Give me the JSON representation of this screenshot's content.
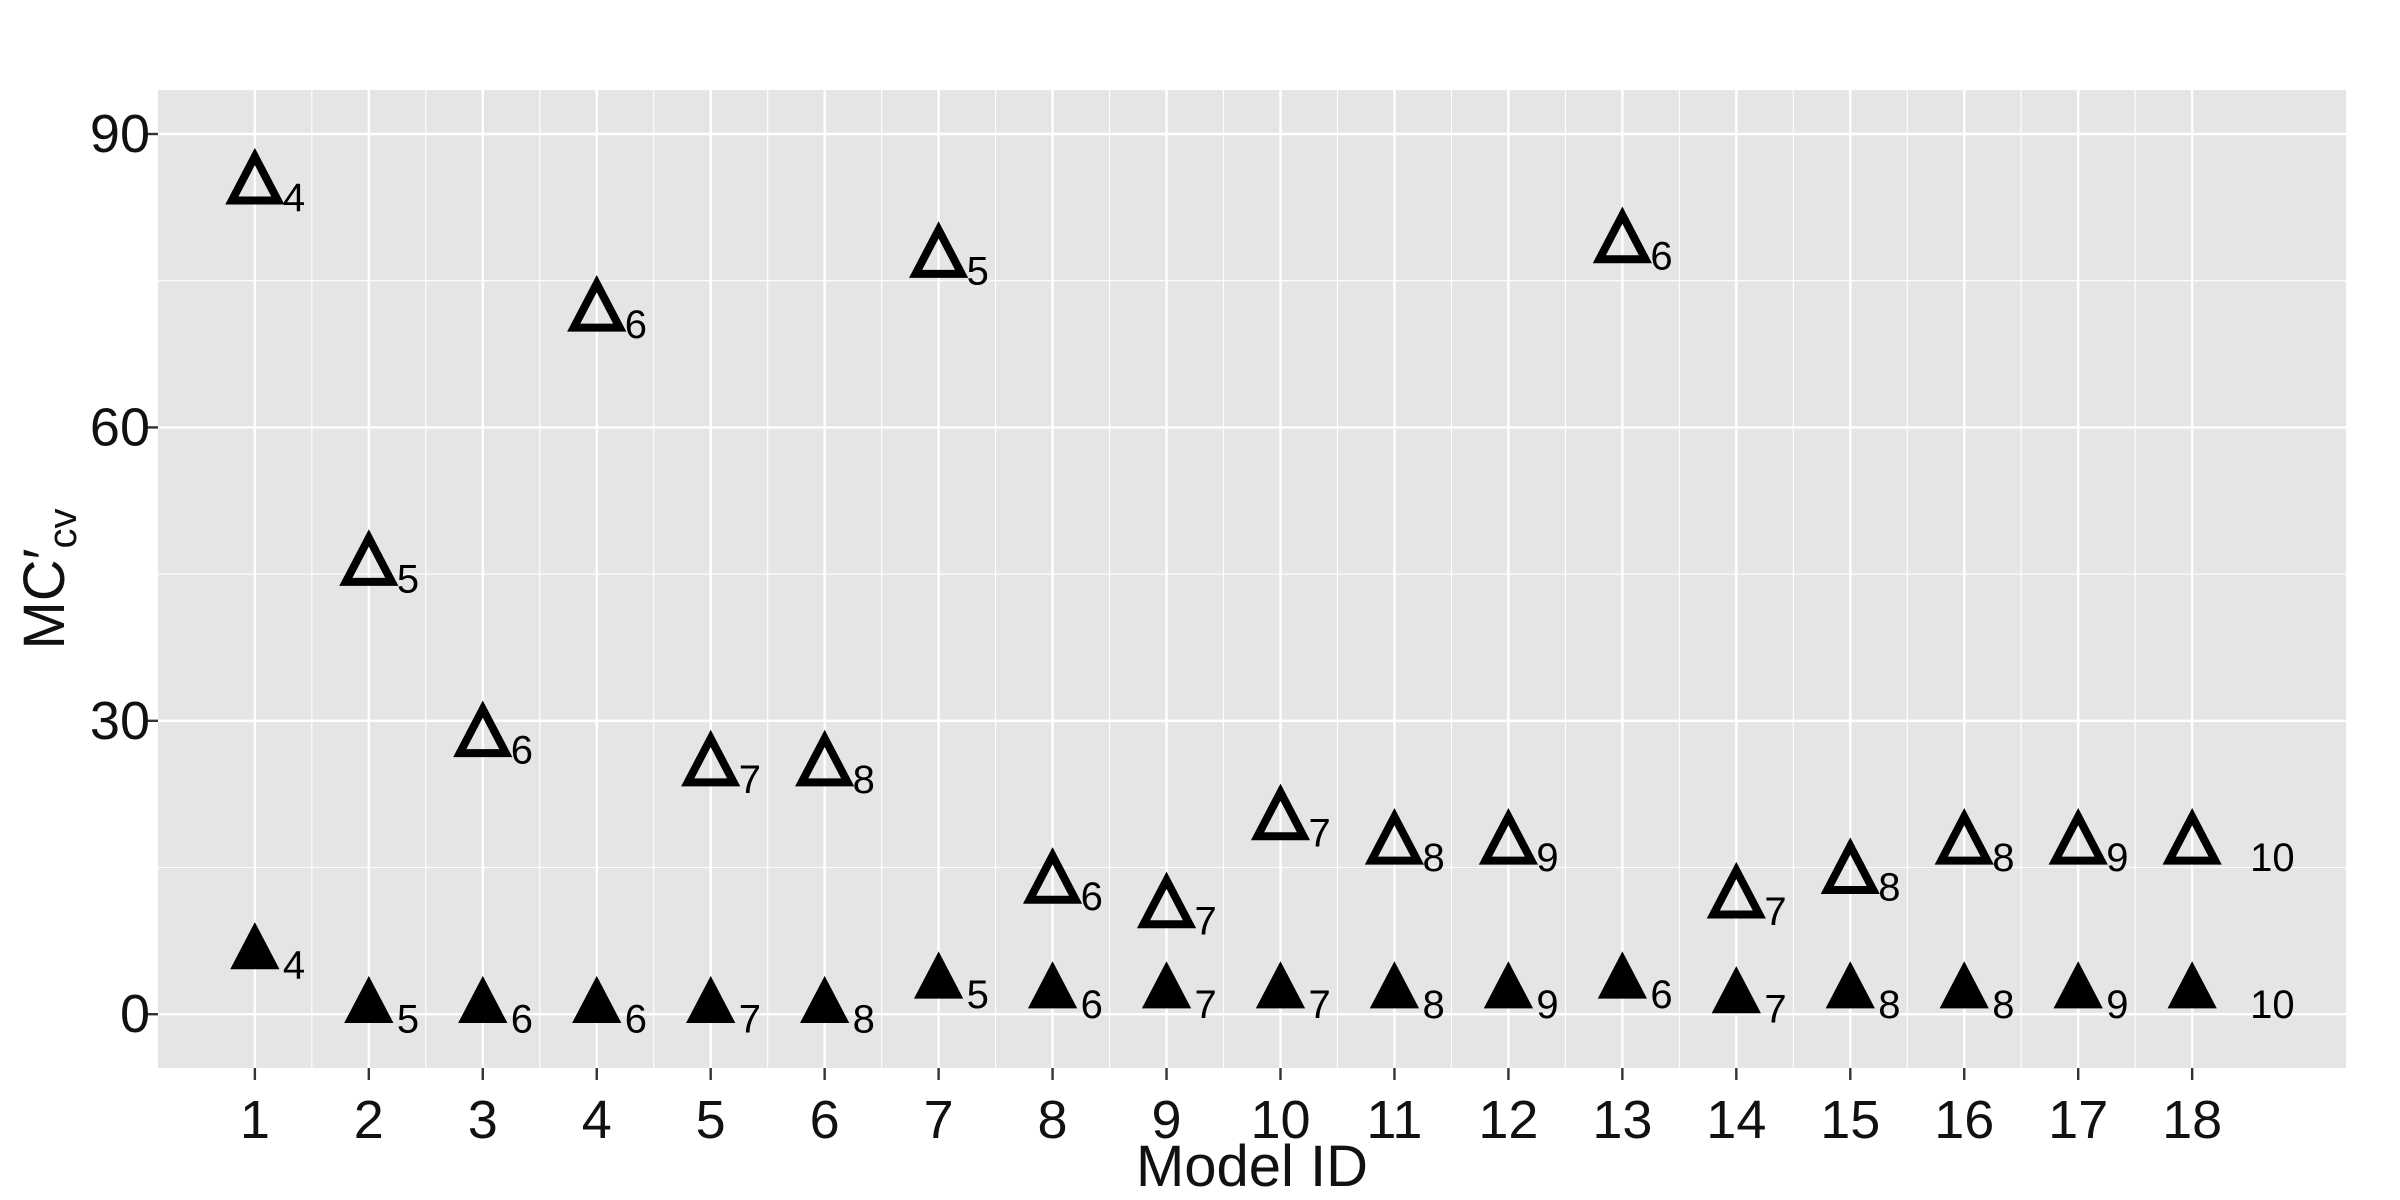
{
  "chart_data": {
    "type": "scatter",
    "title": "",
    "xlabel": "Model ID",
    "ylabel_main": "MC′",
    "ylabel_sub": "cv",
    "xlim": [
      0.15,
      19.35
    ],
    "ylim": [
      -5.5,
      94.5
    ],
    "x_ticks": [
      1,
      2,
      3,
      4,
      5,
      6,
      7,
      8,
      9,
      10,
      11,
      12,
      13,
      14,
      15,
      16,
      17,
      18
    ],
    "y_ticks": [
      0,
      30,
      60,
      90
    ],
    "grid": true,
    "legend": "none",
    "colors": {
      "panel": "#e5e5e5",
      "grid": "#ffffff",
      "marker": "#000000"
    },
    "series": [
      {
        "marker": "open-triangle",
        "points": [
          {
            "x": 1,
            "y": 85,
            "label": "4"
          },
          {
            "x": 2,
            "y": 46,
            "label": "5"
          },
          {
            "x": 3,
            "y": 28.5,
            "label": "6"
          },
          {
            "x": 4,
            "y": 72,
            "label": "6"
          },
          {
            "x": 5,
            "y": 25.5,
            "label": "7"
          },
          {
            "x": 6,
            "y": 25.5,
            "label": "8"
          },
          {
            "x": 7,
            "y": 77.5,
            "label": "5"
          },
          {
            "x": 8,
            "y": 13.5,
            "label": "6"
          },
          {
            "x": 9,
            "y": 11,
            "label": "7"
          },
          {
            "x": 10,
            "y": 20,
            "label": "7"
          },
          {
            "x": 11,
            "y": 17.5,
            "label": "8"
          },
          {
            "x": 12,
            "y": 17.5,
            "label": "9"
          },
          {
            "x": 13,
            "y": 79,
            "label": "6"
          },
          {
            "x": 14,
            "y": 12,
            "label": "7"
          },
          {
            "x": 15,
            "y": 14.5,
            "label": "8"
          },
          {
            "x": 16,
            "y": 17.5,
            "label": "8"
          },
          {
            "x": 17,
            "y": 17.5,
            "label": "9"
          },
          {
            "x": 18,
            "y": 17.5,
            "label": "10"
          }
        ]
      },
      {
        "marker": "filled-triangle",
        "points": [
          {
            "x": 1,
            "y": 6.5,
            "label": "4"
          },
          {
            "x": 2,
            "y": 1,
            "label": "5"
          },
          {
            "x": 3,
            "y": 1,
            "label": "6"
          },
          {
            "x": 4,
            "y": 1,
            "label": "6"
          },
          {
            "x": 5,
            "y": 1,
            "label": "7"
          },
          {
            "x": 6,
            "y": 1,
            "label": "8"
          },
          {
            "x": 7,
            "y": 3.5,
            "label": "5"
          },
          {
            "x": 8,
            "y": 2.5,
            "label": "6"
          },
          {
            "x": 9,
            "y": 2.5,
            "label": "7"
          },
          {
            "x": 10,
            "y": 2.5,
            "label": "7"
          },
          {
            "x": 11,
            "y": 2.5,
            "label": "8"
          },
          {
            "x": 12,
            "y": 2.5,
            "label": "9"
          },
          {
            "x": 13,
            "y": 3.5,
            "label": "6"
          },
          {
            "x": 14,
            "y": 2,
            "label": "7"
          },
          {
            "x": 15,
            "y": 2.5,
            "label": "8"
          },
          {
            "x": 16,
            "y": 2.5,
            "label": "8"
          },
          {
            "x": 17,
            "y": 2.5,
            "label": "9"
          },
          {
            "x": 18,
            "y": 2.5,
            "label": "10"
          }
        ]
      }
    ]
  }
}
